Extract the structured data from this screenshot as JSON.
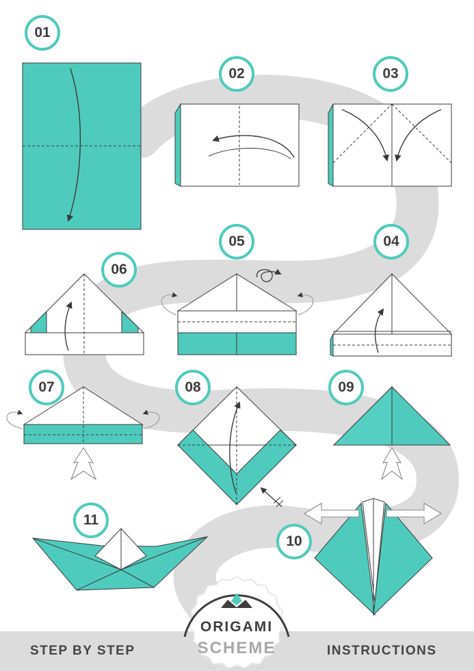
{
  "colors": {
    "teal": "#4fcbbd",
    "path_gray": "#dcdcdc",
    "outline": "#3a3a3a",
    "text": "#444444"
  },
  "steps": [
    "01",
    "02",
    "03",
    "04",
    "05",
    "06",
    "07",
    "08",
    "09",
    "10",
    "11"
  ],
  "footer": {
    "left": "STEP BY STEP",
    "right": "INSTRUCTIONS"
  },
  "logo": {
    "line1": "ORIGAMI",
    "line2": "SCHEME"
  }
}
